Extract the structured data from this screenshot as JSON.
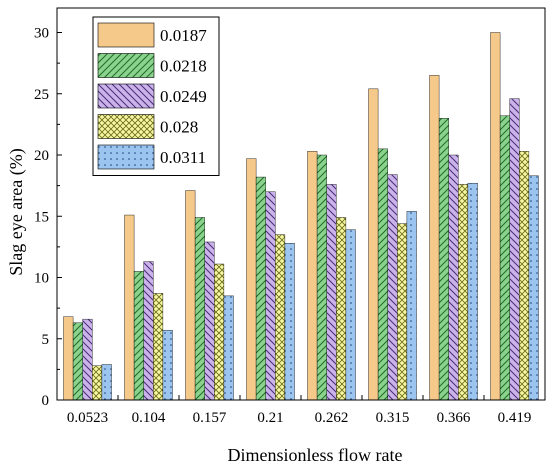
{
  "chart_data": {
    "type": "bar",
    "xlabel": "Dimensionless flow rate",
    "ylabel": "Slag eye area (%)",
    "categories": [
      "0.0523",
      "0.104",
      "0.157",
      "0.21",
      "0.262",
      "0.315",
      "0.366",
      "0.419"
    ],
    "ylim": [
      0,
      32
    ],
    "yticks": [
      0,
      5,
      10,
      15,
      20,
      25,
      30
    ],
    "legend_placement": "top-left",
    "series": [
      {
        "name": "0.0187",
        "color": "#f5c98a",
        "pattern": "solid",
        "values": [
          6.8,
          15.1,
          17.1,
          19.7,
          20.3,
          25.4,
          26.5,
          30.0
        ]
      },
      {
        "name": "0.0218",
        "color": "#8bd38d",
        "pattern": "forward-diagonal",
        "values": [
          6.3,
          10.5,
          14.9,
          18.2,
          20.0,
          20.5,
          23.0,
          23.2
        ]
      },
      {
        "name": "0.0249",
        "color": "#c9b3e8",
        "pattern": "backward-diagonal",
        "values": [
          6.6,
          11.3,
          12.9,
          17.0,
          17.6,
          18.4,
          20.0,
          24.6
        ]
      },
      {
        "name": "0.028",
        "color": "#f6f7a0",
        "pattern": "crosshatch",
        "values": [
          2.8,
          8.7,
          11.1,
          13.5,
          14.9,
          14.4,
          17.6,
          20.3
        ]
      },
      {
        "name": "0.0311",
        "color": "#9bc4ef",
        "pattern": "dots",
        "values": [
          2.9,
          5.7,
          8.5,
          12.8,
          13.9,
          15.4,
          17.7,
          18.3
        ]
      }
    ]
  }
}
